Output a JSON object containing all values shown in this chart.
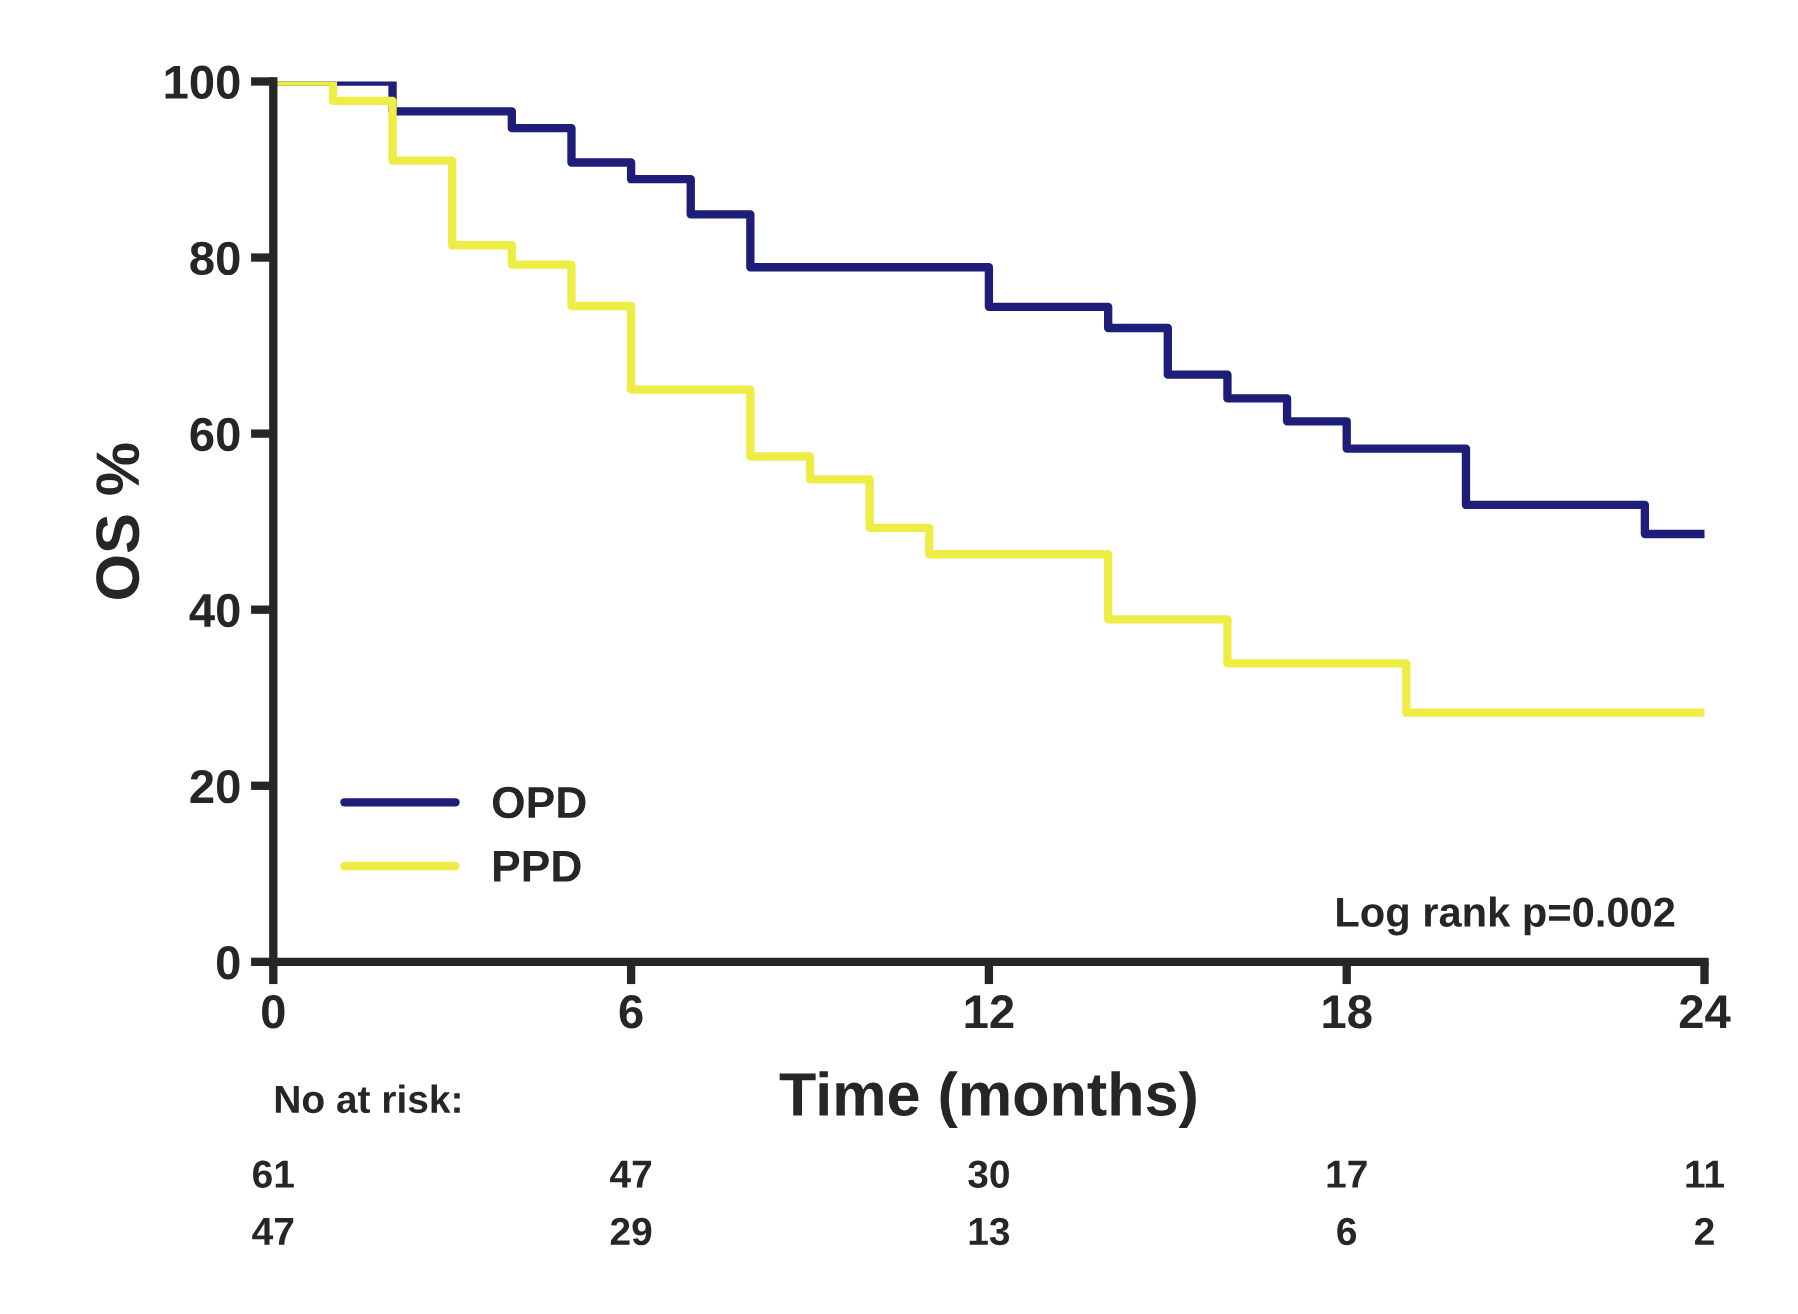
{
  "chart_data": {
    "type": "step",
    "xlabel": "Time (months)",
    "ylabel": "OS %",
    "xlim": [
      0,
      24
    ],
    "xticks": [
      0,
      6,
      12,
      18,
      24
    ],
    "ylim": [
      0,
      100
    ],
    "yticks": [
      0,
      20,
      40,
      60,
      80,
      100
    ],
    "grid": false,
    "legend": "bottom left",
    "series": [
      {
        "name": "OPD",
        "color": "#1e1e78",
        "x": [
          0,
          2,
          4,
          5,
          6,
          7,
          8,
          12,
          14,
          15,
          16,
          17,
          18,
          20,
          23,
          24
        ],
        "values": [
          100,
          96.6,
          94.7,
          90.8,
          88.9,
          84.9,
          78.9,
          74.4,
          72,
          66.7,
          64,
          61.4,
          58.3,
          51.9,
          48.6,
          48.6
        ]
      },
      {
        "name": "PPD",
        "color": "#eded45",
        "x": [
          0,
          1,
          2,
          3,
          4,
          5,
          6,
          8,
          9,
          10,
          11,
          14,
          16,
          19,
          24
        ],
        "values": [
          100,
          97.8,
          91,
          81.4,
          79.2,
          74.5,
          65,
          57.4,
          54.8,
          49.3,
          46.3,
          38.9,
          33.9,
          28.3,
          28.3
        ]
      }
    ],
    "annotations": [
      "Log rank p=0.002",
      "No at risk:",
      "61 47 30 17 11",
      "47 29 13 6 2"
    ]
  }
}
